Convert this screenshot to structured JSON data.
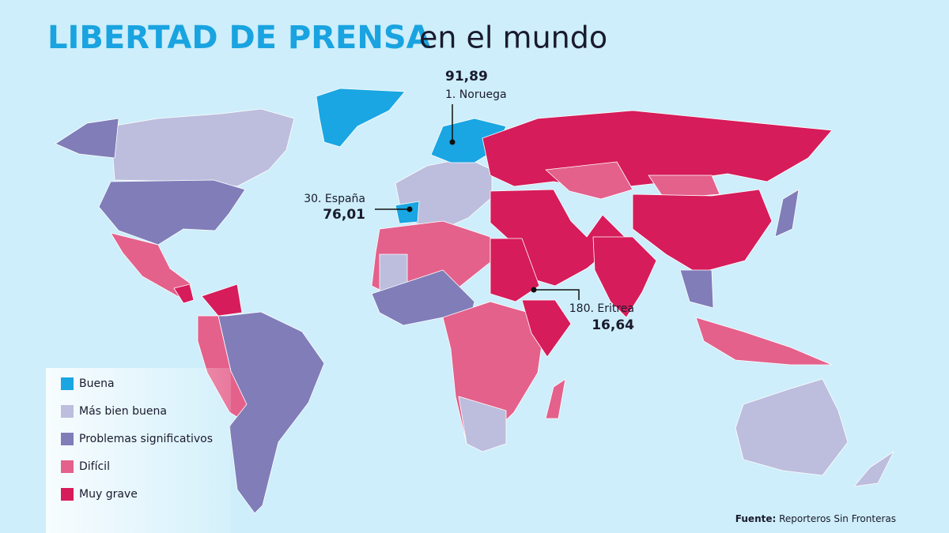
{
  "title": {
    "highlight": "LIBERTAD DE PRENSA",
    "rest": "en el mundo"
  },
  "legend": [
    {
      "label": "Buena",
      "color": "#1aa6e2"
    },
    {
      "label": "Más bien buena",
      "color": "#bdbddd"
    },
    {
      "label": "Problemas significativos",
      "color": "#807db9"
    },
    {
      "label": "Difícil",
      "color": "#e4618c"
    },
    {
      "label": "Muy grave",
      "color": "#d61c5a"
    }
  ],
  "annotations": [
    {
      "score": "91,89",
      "rank": "1. Noruega"
    },
    {
      "rank": "30. España",
      "score": "76,01"
    },
    {
      "rank": "180. Eritrea",
      "score": "16,64"
    }
  ],
  "source": {
    "label": "Fuente:",
    "text": "Reporteros Sin Fronteras"
  }
}
